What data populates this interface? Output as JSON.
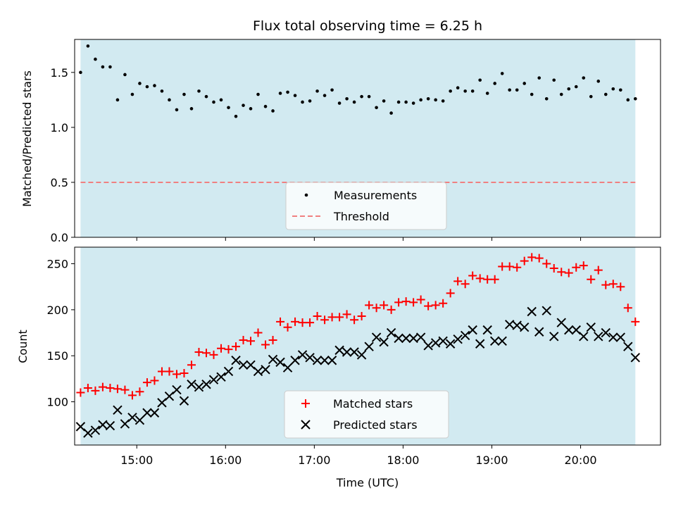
{
  "figure": {
    "title": "Flux total observing time = 6.25 h",
    "xlabel": "Time (UTC)"
  },
  "colors": {
    "shade": "#add8e6",
    "measurements": "#000000",
    "threshold": "#f08080",
    "matched": "#ff0000",
    "predicted": "#000000"
  },
  "chart_data": [
    {
      "type": "scatter",
      "panel": "top",
      "ylabel": "Matched/Predicted stars",
      "xlim": [
        "14:18",
        "20:54"
      ],
      "ylim": [
        0,
        1.8
      ],
      "yticks": [
        0.0,
        0.5,
        1.0,
        1.5
      ],
      "xticks": [
        "15:00",
        "16:00",
        "17:00",
        "18:00",
        "19:00",
        "20:00"
      ],
      "shaded_span": [
        "14:22",
        "20:37"
      ],
      "legend_placement": "lower center",
      "series": [
        {
          "name": "Measurements",
          "marker": "dot",
          "x": [
            "14:22",
            "14:27",
            "14:32",
            "14:37",
            "14:42",
            "14:47",
            "14:52",
            "14:57",
            "15:02",
            "15:07",
            "15:12",
            "15:17",
            "15:22",
            "15:27",
            "15:32",
            "15:37",
            "15:42",
            "15:47",
            "15:52",
            "15:57",
            "16:02",
            "16:07",
            "16:12",
            "16:17",
            "16:22",
            "16:27",
            "16:32",
            "16:37",
            "16:42",
            "16:47",
            "16:52",
            "16:57",
            "17:02",
            "17:07",
            "17:12",
            "17:17",
            "17:22",
            "17:27",
            "17:32",
            "17:37",
            "17:42",
            "17:47",
            "17:52",
            "17:57",
            "18:02",
            "18:07",
            "18:12",
            "18:17",
            "18:22",
            "18:27",
            "18:32",
            "18:37",
            "18:42",
            "18:47",
            "18:52",
            "18:57",
            "19:02",
            "19:07",
            "19:12",
            "19:17",
            "19:22",
            "19:27",
            "19:32",
            "19:37",
            "19:42",
            "19:47",
            "19:52",
            "19:57",
            "20:02",
            "20:07",
            "20:12",
            "20:17",
            "20:22",
            "20:27",
            "20:32",
            "20:37"
          ],
          "y": [
            1.5,
            1.74,
            1.62,
            1.55,
            1.55,
            1.25,
            1.48,
            1.3,
            1.4,
            1.37,
            1.38,
            1.33,
            1.25,
            1.16,
            1.3,
            1.17,
            1.33,
            1.28,
            1.23,
            1.25,
            1.18,
            1.1,
            1.2,
            1.17,
            1.3,
            1.19,
            1.15,
            1.31,
            1.32,
            1.29,
            1.23,
            1.24,
            1.33,
            1.29,
            1.34,
            1.22,
            1.26,
            1.23,
            1.28,
            1.28,
            1.18,
            1.24,
            1.13,
            1.23,
            1.23,
            1.22,
            1.25,
            1.26,
            1.25,
            1.24,
            1.33,
            1.36,
            1.33,
            1.33,
            1.43,
            1.31,
            1.4,
            1.49,
            1.34,
            1.34,
            1.4,
            1.3,
            1.45,
            1.26,
            1.43,
            1.3,
            1.35,
            1.37,
            1.45,
            1.28,
            1.42,
            1.3,
            1.35,
            1.34,
            1.25,
            1.26
          ]
        },
        {
          "name": "Threshold",
          "style": "dashed",
          "x": [
            "14:22",
            "20:37"
          ],
          "y": [
            0.5,
            0.5
          ]
        }
      ]
    },
    {
      "type": "scatter",
      "panel": "bottom",
      "ylabel": "Count",
      "xlim": [
        "14:18",
        "20:54"
      ],
      "ylim": [
        53,
        268
      ],
      "yticks": [
        100,
        150,
        200,
        250
      ],
      "xticks": [
        "15:00",
        "16:00",
        "17:00",
        "18:00",
        "19:00",
        "20:00"
      ],
      "shaded_span": [
        "14:22",
        "20:37"
      ],
      "legend_placement": "lower center",
      "series": [
        {
          "name": "Matched stars",
          "marker": "plus",
          "x": [
            "14:22",
            "14:27",
            "14:32",
            "14:37",
            "14:42",
            "14:47",
            "14:52",
            "14:57",
            "15:02",
            "15:07",
            "15:12",
            "15:17",
            "15:22",
            "15:27",
            "15:32",
            "15:37",
            "15:42",
            "15:47",
            "15:52",
            "15:57",
            "16:02",
            "16:07",
            "16:12",
            "16:17",
            "16:22",
            "16:27",
            "16:32",
            "16:37",
            "16:42",
            "16:47",
            "16:52",
            "16:57",
            "17:02",
            "17:07",
            "17:12",
            "17:17",
            "17:22",
            "17:27",
            "17:32",
            "17:37",
            "17:42",
            "17:47",
            "17:52",
            "17:57",
            "18:02",
            "18:07",
            "18:12",
            "18:17",
            "18:22",
            "18:27",
            "18:32",
            "18:37",
            "18:42",
            "18:47",
            "18:52",
            "18:57",
            "19:02",
            "19:07",
            "19:12",
            "19:17",
            "19:22",
            "19:27",
            "19:32",
            "19:37",
            "19:42",
            "19:47",
            "19:52",
            "19:57",
            "20:02",
            "20:07",
            "20:12",
            "20:17",
            "20:22",
            "20:27",
            "20:32",
            "20:37"
          ],
          "y": [
            110,
            115,
            112,
            116,
            115,
            114,
            113,
            107,
            111,
            121,
            123,
            133,
            133,
            130,
            131,
            140,
            154,
            153,
            151,
            158,
            157,
            160,
            167,
            166,
            175,
            162,
            167,
            187,
            181,
            187,
            186,
            186,
            193,
            189,
            192,
            192,
            195,
            189,
            193,
            205,
            202,
            205,
            200,
            208,
            209,
            208,
            211,
            204,
            205,
            207,
            218,
            231,
            228,
            237,
            234,
            233,
            233,
            247,
            247,
            246,
            253,
            257,
            256,
            250,
            245,
            241,
            240,
            246,
            248,
            233,
            243,
            227,
            228,
            225,
            202,
            187
          ]
        },
        {
          "name": "Predicted stars",
          "marker": "x",
          "x": [
            "14:22",
            "14:27",
            "14:32",
            "14:37",
            "14:42",
            "14:47",
            "14:52",
            "14:57",
            "15:02",
            "15:07",
            "15:12",
            "15:17",
            "15:22",
            "15:27",
            "15:32",
            "15:37",
            "15:42",
            "15:47",
            "15:52",
            "15:57",
            "16:02",
            "16:07",
            "16:12",
            "16:17",
            "16:22",
            "16:27",
            "16:32",
            "16:37",
            "16:42",
            "16:47",
            "16:52",
            "16:57",
            "17:02",
            "17:07",
            "17:12",
            "17:17",
            "17:22",
            "17:27",
            "17:32",
            "17:37",
            "17:42",
            "17:47",
            "17:52",
            "17:57",
            "18:02",
            "18:07",
            "18:12",
            "18:17",
            "18:22",
            "18:27",
            "18:32",
            "18:37",
            "18:42",
            "18:47",
            "18:52",
            "18:57",
            "19:02",
            "19:07",
            "19:12",
            "19:17",
            "19:22",
            "19:27",
            "19:32",
            "19:37",
            "19:42",
            "19:47",
            "19:52",
            "19:57",
            "20:02",
            "20:07",
            "20:12",
            "20:17",
            "20:22",
            "20:27",
            "20:32",
            "20:37"
          ],
          "y": [
            73,
            66,
            69,
            75,
            74,
            91,
            76,
            83,
            80,
            88,
            88,
            99,
            106,
            113,
            101,
            119,
            116,
            119,
            124,
            127,
            133,
            145,
            140,
            140,
            133,
            135,
            146,
            143,
            137,
            145,
            151,
            148,
            145,
            145,
            145,
            156,
            154,
            154,
            151,
            160,
            170,
            165,
            175,
            169,
            169,
            169,
            170,
            161,
            164,
            166,
            163,
            168,
            172,
            178,
            163,
            178,
            166,
            166,
            184,
            183,
            181,
            198,
            176,
            199,
            171,
            186,
            178,
            178,
            171,
            181,
            171,
            175,
            170,
            170,
            160,
            148
          ]
        }
      ]
    }
  ]
}
